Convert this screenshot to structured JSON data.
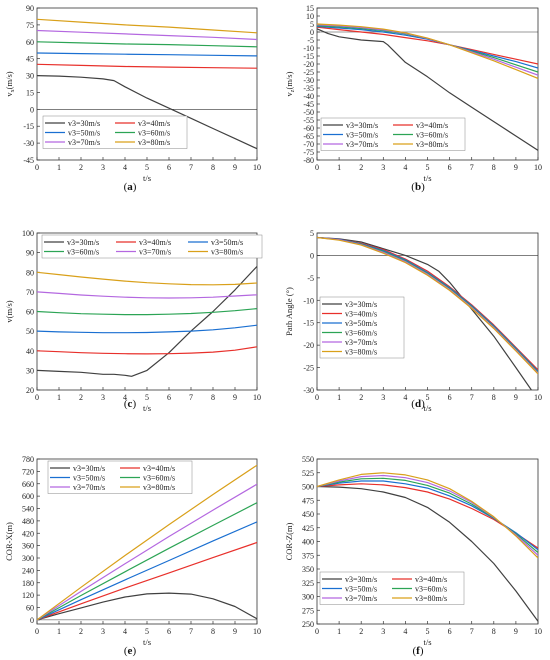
{
  "colors": {
    "v3=30m/s": "#404040",
    "v3=40m/s": "#e8302b",
    "v3=50m/s": "#1a6fd1",
    "v3=60m/s": "#2ca455",
    "v3=70m/s": "#b468e0",
    "v3=80m/s": "#d9a01a"
  },
  "chart_data": [
    {
      "type": "line",
      "caption": "(a)",
      "xlabel": "t/s",
      "ylabel": "vx(m/s)",
      "ylabel_main": "v",
      "ylabel_sub": "x",
      "ylabel_unit": "(m/s)",
      "xlim": [
        0,
        10
      ],
      "ylim": [
        -45,
        90
      ],
      "xticks": [
        0,
        1,
        2,
        3,
        4,
        5,
        6,
        7,
        8,
        9,
        10
      ],
      "yticks": [
        -45,
        -30,
        -15,
        0,
        15,
        30,
        45,
        60,
        75,
        90
      ],
      "legend": "lower-left",
      "legend_cols": 2,
      "series": [
        {
          "name": "v3=30m/s",
          "x": [
            0,
            1,
            2,
            3,
            3.5,
            4,
            5,
            6,
            7,
            8,
            9,
            10
          ],
          "y": [
            30,
            29.5,
            28.5,
            27,
            25.5,
            20,
            10,
            1,
            -8,
            -17,
            -26,
            -35
          ]
        },
        {
          "name": "v3=40m/s",
          "x": [
            0,
            2,
            4,
            6,
            8,
            10
          ],
          "y": [
            40,
            39,
            38,
            37.5,
            37,
            36.5
          ]
        },
        {
          "name": "v3=50m/s",
          "x": [
            0,
            2,
            4,
            6,
            8,
            10
          ],
          "y": [
            50,
            49.5,
            49,
            48.5,
            48,
            47.5
          ]
        },
        {
          "name": "v3=60m/s",
          "x": [
            0,
            2,
            4,
            6,
            8,
            10
          ],
          "y": [
            60,
            59,
            58,
            57.5,
            56.5,
            55.5
          ]
        },
        {
          "name": "v3=70m/s",
          "x": [
            0,
            2,
            4,
            6,
            8,
            10
          ],
          "y": [
            70,
            68.5,
            67,
            65.5,
            64,
            62
          ]
        },
        {
          "name": "v3=80m/s",
          "x": [
            0,
            2,
            4,
            6,
            8,
            10
          ],
          "y": [
            80,
            77.5,
            75,
            73,
            70.5,
            68
          ]
        }
      ]
    },
    {
      "type": "line",
      "caption": "(b)",
      "xlabel": "t/s",
      "ylabel": "vz(m/s)",
      "ylabel_main": "v",
      "ylabel_sub": "z",
      "ylabel_unit": "(m/s)",
      "xlim": [
        0,
        10
      ],
      "ylim": [
        -80,
        15
      ],
      "xticks": [
        0,
        1,
        2,
        3,
        4,
        5,
        6,
        7,
        8,
        9,
        10
      ],
      "yticks": [
        -80,
        -75,
        -70,
        -65,
        -60,
        -55,
        -50,
        -45,
        -40,
        -35,
        -30,
        -25,
        -20,
        -15,
        -10,
        -5,
        0,
        5,
        10,
        15
      ],
      "legend": "lower-left",
      "legend_cols": 2,
      "series": [
        {
          "name": "v3=30m/s",
          "x": [
            0,
            0.5,
            1,
            2,
            3,
            3.2,
            4,
            5,
            6,
            7,
            8,
            9,
            10
          ],
          "y": [
            2,
            -1,
            -3,
            -5,
            -6,
            -8,
            -19,
            -28,
            -38,
            -47,
            -56,
            -65,
            -74
          ]
        },
        {
          "name": "v3=40m/s",
          "x": [
            0,
            1,
            2,
            3,
            4,
            5,
            6,
            7,
            8,
            9,
            10
          ],
          "y": [
            3,
            1.5,
            0,
            -1.5,
            -3.5,
            -5.5,
            -8,
            -11,
            -14,
            -17,
            -20
          ]
        },
        {
          "name": "v3=50m/s",
          "x": [
            0,
            1,
            2,
            3,
            4,
            5,
            6,
            7,
            8,
            9,
            10
          ],
          "y": [
            3.5,
            2.5,
            1.5,
            0,
            -2,
            -4.5,
            -8,
            -11.5,
            -15,
            -18.5,
            -22.5
          ]
        },
        {
          "name": "v3=60m/s",
          "x": [
            0,
            1,
            2,
            3,
            4,
            5,
            6,
            7,
            8,
            9,
            10
          ],
          "y": [
            4,
            3.2,
            2.2,
            0.8,
            -1.2,
            -4,
            -8,
            -12,
            -16,
            -20.5,
            -25
          ]
        },
        {
          "name": "v3=70m/s",
          "x": [
            0,
            1,
            2,
            3,
            4,
            5,
            6,
            7,
            8,
            9,
            10
          ],
          "y": [
            4.5,
            3.8,
            2.8,
            1.3,
            -0.8,
            -4,
            -8,
            -12.5,
            -17,
            -22,
            -27
          ]
        },
        {
          "name": "v3=80m/s",
          "x": [
            0,
            1,
            2,
            3,
            4,
            5,
            6,
            7,
            8,
            9,
            10
          ],
          "y": [
            5,
            4.3,
            3.3,
            1.8,
            -0.5,
            -3.8,
            -8,
            -13,
            -18,
            -23.5,
            -29
          ]
        }
      ]
    },
    {
      "type": "line",
      "caption": "(c)",
      "xlabel": "t/s",
      "ylabel": "v(m/s)",
      "ylabel_main": "v",
      "ylabel_sub": "",
      "ylabel_unit": "(m/s)",
      "xlim": [
        0,
        10
      ],
      "ylim": [
        20,
        100
      ],
      "xticks": [
        0,
        1,
        2,
        3,
        4,
        5,
        6,
        7,
        8,
        9,
        10
      ],
      "yticks": [
        20,
        30,
        40,
        50,
        60,
        70,
        80,
        90,
        100
      ],
      "legend": "top",
      "legend_cols": 3,
      "series": [
        {
          "name": "v3=30m/s",
          "x": [
            0,
            1,
            2,
            3,
            3.5,
            4,
            4.3,
            5,
            6,
            7,
            8,
            9,
            10
          ],
          "y": [
            30,
            29.5,
            29,
            28,
            28,
            27.5,
            27,
            30,
            39,
            50,
            60,
            71,
            83
          ]
        },
        {
          "name": "v3=40m/s",
          "x": [
            0,
            1,
            2,
            3,
            4,
            5,
            6,
            7,
            8,
            9,
            10
          ],
          "y": [
            40,
            39.5,
            39,
            38.7,
            38.5,
            38.4,
            38.5,
            38.8,
            39.3,
            40.3,
            42
          ]
        },
        {
          "name": "v3=50m/s",
          "x": [
            0,
            1,
            2,
            3,
            4,
            5,
            6,
            7,
            8,
            9,
            10
          ],
          "y": [
            50,
            49.6,
            49.4,
            49.2,
            49.2,
            49.3,
            49.6,
            50,
            50.7,
            51.7,
            53
          ]
        },
        {
          "name": "v3=60m/s",
          "x": [
            0,
            1,
            2,
            3,
            4,
            5,
            6,
            7,
            8,
            9,
            10
          ],
          "y": [
            60,
            59.4,
            58.9,
            58.6,
            58.4,
            58.4,
            58.6,
            59,
            59.6,
            60.4,
            61.5
          ]
        },
        {
          "name": "v3=70m/s",
          "x": [
            0,
            1,
            2,
            3,
            4,
            5,
            6,
            7,
            8,
            9,
            10
          ],
          "y": [
            70,
            69.2,
            68.4,
            67.8,
            67.3,
            67,
            66.9,
            67,
            67.3,
            67.9,
            68.5
          ]
        },
        {
          "name": "v3=80m/s",
          "x": [
            0,
            1,
            2,
            3,
            4,
            5,
            6,
            7,
            8,
            9,
            10
          ],
          "y": [
            80,
            78.8,
            77.6,
            76.5,
            75.5,
            74.7,
            74.1,
            73.7,
            73.6,
            73.8,
            74.5
          ]
        }
      ]
    },
    {
      "type": "line",
      "caption": "(d)",
      "xlabel": "t/s",
      "ylabel": "Path Angle (°)",
      "ylabel_main": "Path Angle (°)",
      "ylabel_sub": "",
      "ylabel_unit": "",
      "xlim": [
        0,
        10
      ],
      "ylim": [
        -30,
        5
      ],
      "xticks": [
        0,
        1,
        2,
        3,
        4,
        5,
        6,
        7,
        8,
        9,
        10
      ],
      "yticks": [
        -30,
        -25,
        -20,
        -15,
        -10,
        -5,
        0,
        5
      ],
      "legend": "lower-left",
      "legend_cols": 1,
      "series": [
        {
          "name": "v3=30m/s",
          "x": [
            0,
            1,
            2,
            3,
            4,
            5,
            5.5,
            6,
            7,
            8,
            9,
            9.7
          ],
          "y": [
            4,
            3.7,
            3,
            1.5,
            0,
            -2,
            -3.5,
            -6,
            -12,
            -18,
            -25,
            -30
          ]
        },
        {
          "name": "v3=40m/s",
          "x": [
            0,
            1,
            2,
            3,
            4,
            5,
            6,
            7,
            8,
            9,
            10
          ],
          "y": [
            4,
            3.6,
            2.7,
            1.3,
            -0.8,
            -3.5,
            -7,
            -11,
            -15.5,
            -20.5,
            -25.5
          ]
        },
        {
          "name": "v3=50m/s",
          "x": [
            0,
            1,
            2,
            3,
            4,
            5,
            6,
            7,
            8,
            9,
            10
          ],
          "y": [
            4,
            3.6,
            2.6,
            1.1,
            -1,
            -3.8,
            -7.2,
            -11.2,
            -15.7,
            -20.7,
            -25.8
          ]
        },
        {
          "name": "v3=60m/s",
          "x": [
            0,
            1,
            2,
            3,
            4,
            5,
            6,
            7,
            8,
            9,
            10
          ],
          "y": [
            4,
            3.5,
            2.5,
            0.9,
            -1.2,
            -4,
            -7.4,
            -11.4,
            -15.9,
            -20.9,
            -26
          ]
        },
        {
          "name": "v3=70m/s",
          "x": [
            0,
            1,
            2,
            3,
            4,
            5,
            6,
            7,
            8,
            9,
            10
          ],
          "y": [
            4,
            3.5,
            2.4,
            0.7,
            -1.4,
            -4.2,
            -7.6,
            -11.6,
            -16.1,
            -21.1,
            -26.2
          ]
        },
        {
          "name": "v3=80m/s",
          "x": [
            0,
            1,
            2,
            3,
            4,
            5,
            6,
            7,
            8,
            9,
            10
          ],
          "y": [
            4,
            3.4,
            2.3,
            0.5,
            -1.6,
            -4.4,
            -7.8,
            -11.8,
            -16.3,
            -21.3,
            -26.4
          ]
        }
      ]
    },
    {
      "type": "line",
      "caption": "(e)",
      "xlabel": "t/s",
      "ylabel": "COR-X(m)",
      "ylabel_main": "COR-X(m)",
      "ylabel_sub": "",
      "ylabel_unit": "",
      "xlim": [
        0,
        10
      ],
      "ylim": [
        -20,
        780
      ],
      "xticks": [
        0,
        1,
        2,
        3,
        4,
        5,
        6,
        7,
        8,
        9,
        10
      ],
      "yticks": [
        0,
        60,
        120,
        180,
        240,
        300,
        360,
        420,
        480,
        540,
        600,
        660,
        720,
        780
      ],
      "legend": "top",
      "legend_cols": 2,
      "series": [
        {
          "name": "v3=30m/s",
          "x": [
            0,
            1,
            2,
            3,
            4,
            5,
            6,
            7,
            8,
            9,
            10
          ],
          "y": [
            0,
            30,
            58,
            86,
            111,
            126,
            130,
            125,
            102,
            65,
            5
          ]
        },
        {
          "name": "v3=40m/s",
          "x": [
            0,
            2,
            4,
            6,
            8,
            10
          ],
          "y": [
            0,
            78,
            154,
            228,
            302,
            375
          ]
        },
        {
          "name": "v3=50m/s",
          "x": [
            0,
            2,
            4,
            6,
            8,
            10
          ],
          "y": [
            0,
            98,
            194,
            288,
            383,
            475
          ]
        },
        {
          "name": "v3=60m/s",
          "x": [
            0,
            2,
            4,
            6,
            8,
            10
          ],
          "y": [
            0,
            118,
            233,
            347,
            458,
            568
          ]
        },
        {
          "name": "v3=70m/s",
          "x": [
            0,
            2,
            4,
            6,
            8,
            10
          ],
          "y": [
            0,
            138,
            272,
            404,
            532,
            658
          ]
        },
        {
          "name": "v3=80m/s",
          "x": [
            0,
            2,
            4,
            6,
            8,
            10
          ],
          "y": [
            0,
            158,
            312,
            462,
            608,
            750
          ]
        }
      ]
    },
    {
      "type": "line",
      "caption": "(f)",
      "xlabel": "t/s",
      "ylabel": "COR-Z(m)",
      "ylabel_main": "COR-Z(m)",
      "ylabel_sub": "",
      "ylabel_unit": "",
      "xlim": [
        0,
        10
      ],
      "ylim": [
        250,
        550
      ],
      "xticks": [
        0,
        1,
        2,
        3,
        4,
        5,
        6,
        7,
        8,
        9,
        10
      ],
      "yticks": [
        250,
        275,
        300,
        325,
        350,
        375,
        400,
        425,
        450,
        475,
        500,
        525,
        550
      ],
      "legend": "bottom-left",
      "legend_cols": 2,
      "series": [
        {
          "name": "v3=30m/s",
          "x": [
            0,
            1,
            2,
            3,
            4,
            5,
            6,
            7,
            8,
            9,
            10
          ],
          "y": [
            500,
            499,
            496,
            490,
            480,
            462,
            435,
            400,
            360,
            310,
            255
          ]
        },
        {
          "name": "v3=40m/s",
          "x": [
            0,
            1,
            2,
            3,
            4,
            5,
            6,
            7,
            8,
            9,
            10
          ],
          "y": [
            500,
            503,
            505,
            503,
            498,
            490,
            477,
            460,
            440,
            415,
            388
          ]
        },
        {
          "name": "v3=50m/s",
          "x": [
            0,
            1,
            2,
            3,
            4,
            5,
            6,
            7,
            8,
            9,
            10
          ],
          "y": [
            500,
            506,
            510,
            510,
            505,
            497,
            483,
            465,
            442,
            416,
            385
          ]
        },
        {
          "name": "v3=60m/s",
          "x": [
            0,
            1,
            2,
            3,
            4,
            5,
            6,
            7,
            8,
            9,
            10
          ],
          "y": [
            500,
            508,
            514,
            515,
            511,
            502,
            488,
            468,
            443,
            414,
            380
          ]
        },
        {
          "name": "v3=70m/s",
          "x": [
            0,
            1,
            2,
            3,
            4,
            5,
            6,
            7,
            8,
            9,
            10
          ],
          "y": [
            500,
            510,
            518,
            520,
            516,
            507,
            492,
            471,
            444,
            412,
            375
          ]
        },
        {
          "name": "v3=80m/s",
          "x": [
            0,
            1,
            2,
            3,
            4,
            5,
            6,
            7,
            8,
            9,
            10
          ],
          "y": [
            500,
            512,
            522,
            525,
            521,
            512,
            496,
            473,
            445,
            410,
            370
          ]
        }
      ]
    }
  ]
}
